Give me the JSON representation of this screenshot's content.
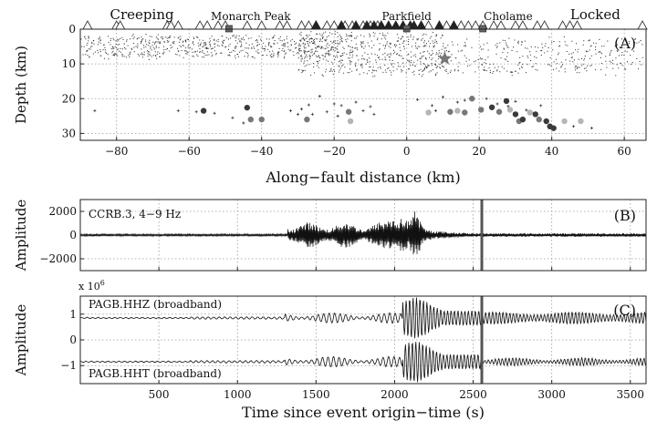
{
  "chart_data": [
    {
      "panel_label": "(A)",
      "type": "scatter",
      "xlabel": "Along−fault distance (km)",
      "ylabel": "Depth (km)",
      "xlim": [
        -90,
        66
      ],
      "ylim": [
        0,
        32
      ],
      "y_inverted": true,
      "xticks": [
        "−80",
        "−60",
        "−40",
        "−20",
        "0",
        "20",
        "40",
        "60"
      ],
      "yticks": [
        "0",
        "10",
        "20",
        "30"
      ],
      "grid": true,
      "region_labels": [
        {
          "text": "Creeping",
          "x": -73
        },
        {
          "text": "Monarch Peak",
          "x": -43
        },
        {
          "text": "Parkfield",
          "x": 0
        },
        {
          "text": "Cholame",
          "x": 28
        },
        {
          "text": "Locked",
          "x": 52
        }
      ],
      "station_triangles_open_x": [
        -88,
        -80,
        -79,
        -66,
        -65,
        -63,
        -57,
        -55,
        -52,
        -50,
        -44,
        -40,
        -35,
        -33,
        -29,
        -27,
        -25,
        -22,
        -20,
        -17,
        -15,
        -12,
        -10,
        -8,
        6,
        11,
        15,
        17,
        19,
        21,
        24,
        26,
        30,
        32,
        36,
        38,
        43,
        45,
        47,
        65
      ],
      "station_triangles_filled_x": [
        -25,
        -18,
        -14,
        -11,
        -9,
        -7,
        -5,
        -3,
        -1,
        1,
        2,
        4,
        9,
        13
      ],
      "station_squares_x": [
        -49,
        0,
        21
      ],
      "mainshock_star": {
        "x": 10.5,
        "y": 8.5
      },
      "tremor_events": [
        {
          "x": -56,
          "y": 23.5,
          "shade": "dark"
        },
        {
          "x": -44,
          "y": 22.6,
          "shade": "dark"
        },
        {
          "x": -43,
          "y": 26.0,
          "shade": "mid"
        },
        {
          "x": -40,
          "y": 26.0,
          "shade": "mid"
        },
        {
          "x": -27.5,
          "y": 26.0,
          "shade": "mid"
        },
        {
          "x": -16,
          "y": 23.8,
          "shade": "mid"
        },
        {
          "x": -15.5,
          "y": 26.5,
          "shade": "light"
        },
        {
          "x": 12,
          "y": 23.8,
          "shade": "mid"
        },
        {
          "x": 14,
          "y": 23.5,
          "shade": "light"
        },
        {
          "x": 16,
          "y": 24.0,
          "shade": "mid"
        },
        {
          "x": 18,
          "y": 20.0,
          "shade": "mid"
        },
        {
          "x": 20.5,
          "y": 23.2,
          "shade": "mid"
        },
        {
          "x": 23.5,
          "y": 22.5,
          "shade": "dark"
        },
        {
          "x": 25.5,
          "y": 23.8,
          "shade": "mid"
        },
        {
          "x": 27.5,
          "y": 20.7,
          "shade": "dark"
        },
        {
          "x": 28.5,
          "y": 23.2,
          "shade": "light"
        },
        {
          "x": 30,
          "y": 24.5,
          "shade": "dark"
        },
        {
          "x": 31,
          "y": 26.5,
          "shade": "mid"
        },
        {
          "x": 32,
          "y": 26.0,
          "shade": "dark"
        },
        {
          "x": 34,
          "y": 24.0,
          "shade": "light"
        },
        {
          "x": 35.5,
          "y": 24.5,
          "shade": "dark"
        },
        {
          "x": 36.5,
          "y": 26.0,
          "shade": "mid"
        },
        {
          "x": 38.5,
          "y": 26.5,
          "shade": "dark"
        },
        {
          "x": 39.5,
          "y": 28.0,
          "shade": "dark"
        },
        {
          "x": 40.5,
          "y": 28.5,
          "shade": "dark"
        },
        {
          "x": 43.5,
          "y": 26.5,
          "shade": "light"
        },
        {
          "x": 48,
          "y": 26.5,
          "shade": "light"
        },
        {
          "x": 6,
          "y": 24.0,
          "shade": "light"
        }
      ],
      "small_tremor_crosses": [
        [
          -86,
          23.5
        ],
        [
          -63,
          23.5
        ],
        [
          -58,
          23.8
        ],
        [
          -53,
          24.2
        ],
        [
          -48,
          25.5
        ],
        [
          -45,
          27.0
        ],
        [
          -32,
          23.5
        ],
        [
          -30,
          24.5
        ],
        [
          -29,
          23.0
        ],
        [
          -27,
          21.8
        ],
        [
          -26,
          24.5
        ],
        [
          -24,
          19.3
        ],
        [
          -22,
          23.8
        ],
        [
          -20,
          21.5
        ],
        [
          -19,
          25.0
        ],
        [
          -18,
          22.0
        ],
        [
          -14,
          21.0
        ],
        [
          -12,
          23.5
        ],
        [
          -10,
          22.3
        ],
        [
          -9,
          24.5
        ],
        [
          3,
          20.3
        ],
        [
          7,
          22.0
        ],
        [
          8,
          23.5
        ],
        [
          10,
          19.5
        ],
        [
          14,
          21.0
        ],
        [
          16,
          20.5
        ],
        [
          22,
          20.0
        ],
        [
          25,
          21.5
        ],
        [
          28,
          22.2
        ],
        [
          30,
          20.8
        ],
        [
          33,
          23.3
        ],
        [
          37,
          22.0
        ],
        [
          46,
          28.0
        ],
        [
          51,
          28.5
        ]
      ]
    },
    {
      "panel_label": "(B)",
      "type": "line",
      "ylabel": "Amplitude",
      "trace_label": "CCRB.3, 4−9 Hz",
      "xlim": [
        0,
        3600
      ],
      "ylim": [
        -3000,
        3000
      ],
      "yticks": [
        "2000",
        "0",
        "−2000"
      ],
      "marker_time": 2555,
      "grid": true
    },
    {
      "panel_label": "(C)",
      "type": "line",
      "ylabel": "Amplitude",
      "xlabel": "Time since event origin−time (s)",
      "scale_label": "x 10",
      "scale_exponent": "6",
      "xlim": [
        0,
        3600
      ],
      "ylim": [
        -1.7,
        1.7
      ],
      "xticks": [
        "500",
        "1000",
        "1500",
        "2000",
        "2500",
        "3000",
        "3500"
      ],
      "yticks": [
        "1",
        "0",
        "−1"
      ],
      "marker_time": 2555,
      "grid": true,
      "series": [
        {
          "name": "PAGB.HHZ (broadband)",
          "offset": 0.85
        },
        {
          "name": "PAGB.HHT (broadband)",
          "offset": -0.85
        }
      ]
    }
  ]
}
